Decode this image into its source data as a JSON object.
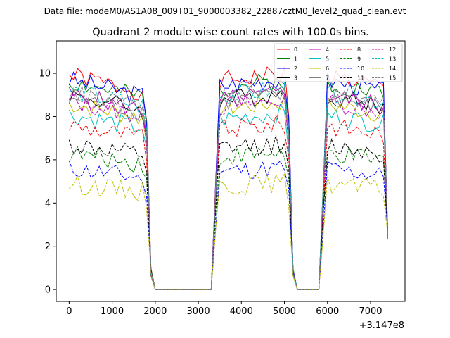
{
  "chart_data": {
    "type": "line",
    "suptitle": "Data file: modeM0/AS1A08_009T01_9000003382_22887cztM0_level2_quad_clean.evt",
    "title": "Quadrant 2 module wise count rates with 100.0s bins.",
    "xlabel": "",
    "ylabel": "",
    "x_offset_label": "+3.147e8",
    "xlim": [
      -300,
      7800
    ],
    "ylim": [
      -0.55,
      11.5
    ],
    "xticks": [
      0,
      1000,
      2000,
      3000,
      4000,
      5000,
      6000,
      7000
    ],
    "yticks": [
      0,
      2,
      4,
      6,
      8,
      10
    ],
    "segments": [
      {
        "start": 0,
        "end": 1800
      },
      {
        "start": 3400,
        "end": 5100
      },
      {
        "start": 5900,
        "end": 7400
      }
    ],
    "legend": {
      "location": "top-right",
      "columns": 4
    },
    "series": [
      {
        "name": "0",
        "color": "#ff0000",
        "dash": "solid",
        "level": 9.9
      },
      {
        "name": "1",
        "color": "#008000",
        "dash": "solid",
        "level": 9.6
      },
      {
        "name": "2",
        "color": "#0000ff",
        "dash": "solid",
        "level": 9.7
      },
      {
        "name": "3",
        "color": "#000000",
        "dash": "solid",
        "level": 9.0
      },
      {
        "name": "4",
        "color": "#bf00bf",
        "dash": "solid",
        "level": 9.0
      },
      {
        "name": "5",
        "color": "#00bfbf",
        "dash": "solid",
        "level": 8.1
      },
      {
        "name": "6",
        "color": "#bfbf00",
        "dash": "solid",
        "level": 8.6
      },
      {
        "name": "7",
        "color": "#808080",
        "dash": "solid",
        "level": 8.9
      },
      {
        "name": "8",
        "color": "#ff0000",
        "dash": "dashed",
        "level": 7.6
      },
      {
        "name": "9",
        "color": "#008000",
        "dash": "dashed",
        "level": 6.3
      },
      {
        "name": "10",
        "color": "#0000ff",
        "dash": "dashed",
        "level": 5.6
      },
      {
        "name": "11",
        "color": "#000000",
        "dash": "dashed",
        "level": 6.7
      },
      {
        "name": "12",
        "color": "#bf00bf",
        "dash": "dashed",
        "level": 8.7
      },
      {
        "name": "13",
        "color": "#00bfbf",
        "dash": "dashed",
        "level": 9.2
      },
      {
        "name": "14",
        "color": "#bfbf00",
        "dash": "dashed",
        "level": 4.9
      },
      {
        "name": "15",
        "color": "#808080",
        "dash": "dashed",
        "level": 9.1
      }
    ]
  }
}
